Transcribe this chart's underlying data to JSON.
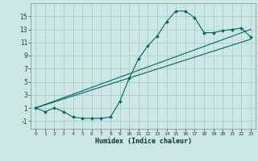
{
  "xlabel": "Humidex (Indice chaleur)",
  "bg_color": "#cce8e4",
  "grid_color": "#aacccc",
  "line_color": "#006666",
  "xlim": [
    -0.5,
    23.5
  ],
  "ylim": [
    -2.2,
    17.0
  ],
  "xtick_labels": [
    "0",
    "1",
    "2",
    "3",
    "4",
    "5",
    "6",
    "7",
    "8",
    "9",
    "10",
    "11",
    "12",
    "13",
    "14",
    "15",
    "16",
    "17",
    "18",
    "19",
    "20",
    "21",
    "22",
    "23"
  ],
  "yticks": [
    -1,
    1,
    3,
    5,
    7,
    9,
    11,
    13,
    15
  ],
  "series": [
    {
      "x": [
        0,
        1,
        2,
        3,
        4,
        5,
        6,
        7,
        8,
        9,
        10,
        11,
        12,
        13,
        14,
        15,
        16,
        17,
        18,
        19,
        20,
        21,
        22,
        23
      ],
      "y": [
        1.0,
        0.4,
        1.0,
        0.4,
        -0.4,
        -0.6,
        -0.6,
        -0.6,
        -0.4,
        2.0,
        5.5,
        8.5,
        10.5,
        12.0,
        14.2,
        15.8,
        15.8,
        14.8,
        12.5,
        12.5,
        12.8,
        13.0,
        13.2,
        11.8
      ],
      "with_markers": true
    },
    {
      "x": [
        0,
        23
      ],
      "y": [
        1.0,
        13.0
      ],
      "with_markers": false
    },
    {
      "x": [
        0,
        23
      ],
      "y": [
        1.0,
        11.5
      ],
      "with_markers": false
    }
  ]
}
